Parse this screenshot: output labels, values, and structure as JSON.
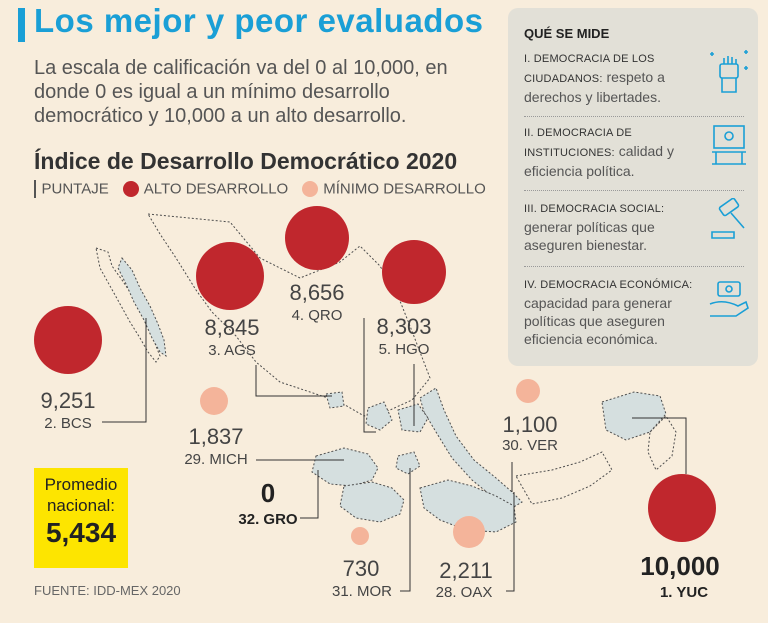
{
  "title": "Los mejor y peor evaluados",
  "subtitle": "La escala de calificación va del 0 al 10,000, en donde 0 es igual a un mínimo desarrollo democrático y 10,000 a un alto desarrollo.",
  "colors": {
    "title": "#1a9fd6",
    "high": "#c0272d",
    "low": "#f4b49a",
    "avg": "#fde500",
    "map": "#d5dfdf"
  },
  "panel": {
    "heading": "QUÉ SE MIDE",
    "sections": [
      {
        "cap": "I. DEMOCRACIA DE LOS CIUDADANOS:",
        "text": "respeto a derechos y libertades.",
        "icon": "raised-fist-icon"
      },
      {
        "cap": "II. DEMOCRACIA DE INSTITUCIONES:",
        "text": "calidad y eficiencia política.",
        "icon": "institution-podium-icon"
      },
      {
        "cap": "III. DEMOCRACIA SOCIAL:",
        "text": "generar políticas que aseguren bienestar.",
        "icon": "gavel-icon"
      },
      {
        "cap": "IV. DEMOCRACIA ECONÓMICA:",
        "text": "capacidad para generar políticas que aseguren eficiencia económica.",
        "icon": "money-hand-icon"
      }
    ]
  },
  "average": {
    "label": "Promedio nacional:",
    "value": "5,434"
  },
  "source": "FUENTE: IDD-MEX 2020",
  "chart_data": {
    "type": "bubble-map",
    "title": "Índice de Desarrollo Democrático 2020",
    "legend": {
      "score_label": "PUNTAJE",
      "high": "ALTO DESARROLLO",
      "low": "MÍNIMO DESARROLLO"
    },
    "scale": [
      0,
      10000
    ],
    "points": [
      {
        "rank": 1,
        "state": "YUC",
        "value": 10000,
        "display": "10,000",
        "label": "1. YUC",
        "category": "high"
      },
      {
        "rank": 2,
        "state": "BCS",
        "value": 9251,
        "display": "9,251",
        "label": "2. BCS",
        "category": "high"
      },
      {
        "rank": 3,
        "state": "AGS",
        "value": 8845,
        "display": "8,845",
        "label": "3. AGS",
        "category": "high"
      },
      {
        "rank": 4,
        "state": "QRO",
        "value": 8656,
        "display": "8,656",
        "label": "4. QRO",
        "category": "high"
      },
      {
        "rank": 5,
        "state": "HGO",
        "value": 8303,
        "display": "8,303",
        "label": "5. HGO",
        "category": "high"
      },
      {
        "rank": 28,
        "state": "OAX",
        "value": 2211,
        "display": "2,211",
        "label": "28. OAX",
        "category": "low"
      },
      {
        "rank": 29,
        "state": "MICH",
        "value": 1837,
        "display": "1,837",
        "label": "29. MICH",
        "category": "low"
      },
      {
        "rank": 30,
        "state": "VER",
        "value": 1100,
        "display": "1,100",
        "label": "30. VER",
        "category": "low"
      },
      {
        "rank": 31,
        "state": "MOR",
        "value": 730,
        "display": "730",
        "label": "31. MOR",
        "category": "low"
      },
      {
        "rank": 32,
        "state": "GRO",
        "value": 0,
        "display": "0",
        "label": "32. GRO",
        "category": "low"
      }
    ]
  }
}
